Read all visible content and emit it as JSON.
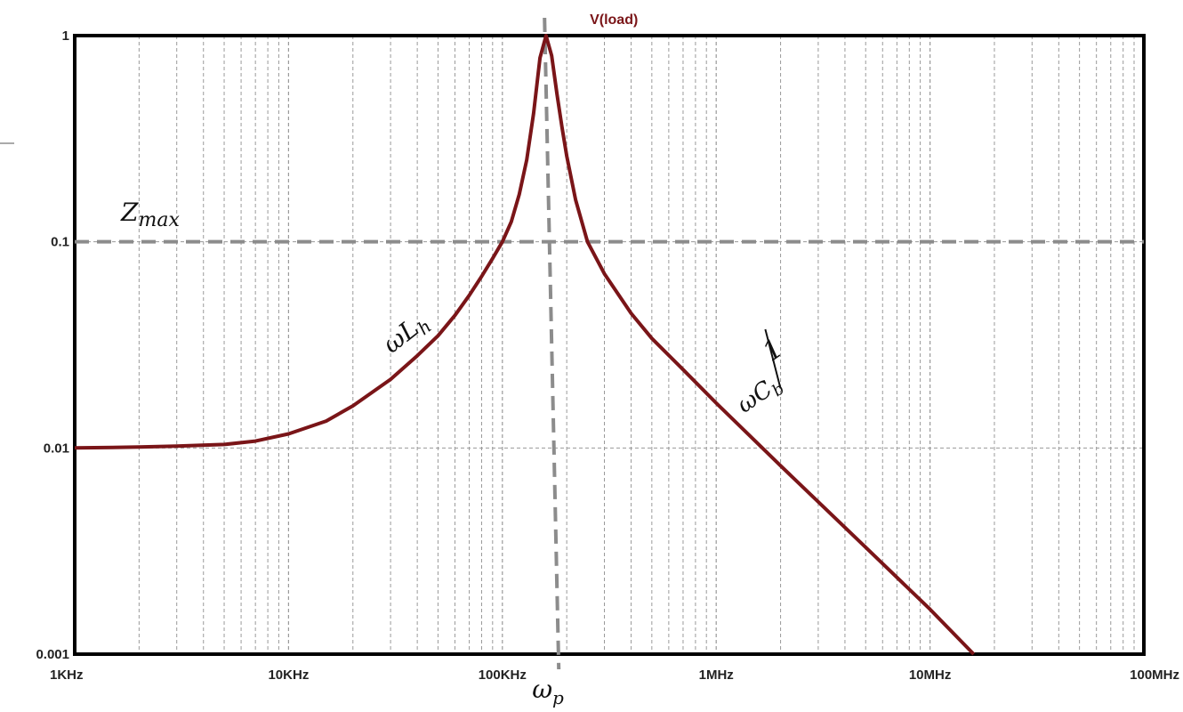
{
  "chart_data": {
    "type": "line",
    "x_scale": "log",
    "y_scale": "log",
    "xlim": [
      1000,
      100000000
    ],
    "ylim": [
      0.001,
      1
    ],
    "grid": true,
    "x_ticks": [
      {
        "value": 1000,
        "label": "1KHz"
      },
      {
        "value": 10000,
        "label": "10KHz"
      },
      {
        "value": 100000,
        "label": "100KHz"
      },
      {
        "value": 1000000,
        "label": "1MHz"
      },
      {
        "value": 10000000,
        "label": "10MHz"
      },
      {
        "value": 100000000,
        "label": "100MHz"
      }
    ],
    "y_ticks": [
      {
        "value": 1,
        "label": "1"
      },
      {
        "value": 0.1,
        "label": "0.1"
      },
      {
        "value": 0.01,
        "label": "0.01"
      },
      {
        "value": 0.001,
        "label": "0.001"
      }
    ],
    "series": [
      {
        "name": "V(load)",
        "color": "#7a1518",
        "x": [
          1000,
          2000,
          3000,
          5000,
          7000,
          10000,
          15000,
          20000,
          30000,
          40000,
          50000,
          60000,
          70000,
          80000,
          90000,
          100000,
          110000,
          120000,
          130000,
          140000,
          150000,
          160000,
          170000,
          180000,
          190000,
          200000,
          220000,
          250000,
          300000,
          400000,
          500000,
          700000,
          1000000,
          2000000,
          5000000,
          10000000,
          16000000
        ],
        "y": [
          0.01,
          0.0101,
          0.0102,
          0.0104,
          0.0108,
          0.0117,
          0.0135,
          0.016,
          0.0215,
          0.028,
          0.035,
          0.044,
          0.055,
          0.068,
          0.083,
          0.1,
          0.125,
          0.17,
          0.25,
          0.42,
          0.78,
          1.0,
          0.8,
          0.52,
          0.36,
          0.26,
          0.16,
          0.1,
          0.07,
          0.045,
          0.034,
          0.024,
          0.0165,
          0.0082,
          0.0033,
          0.00165,
          0.001
        ]
      }
    ],
    "annotations": {
      "z_max": {
        "label": "Z",
        "sub": "max",
        "y": 0.1
      },
      "omega_p": {
        "label": "ω",
        "sub": "p",
        "x": 170000
      },
      "omega_l": {
        "label": "ωL",
        "sub": "h"
      },
      "omega_c": {
        "numerator": "1",
        "denominator": "ωC",
        "sub": "b"
      }
    },
    "colors": {
      "reference_line": "#8c8c8c",
      "frame": "#000000",
      "grid": "#9a9a9a"
    }
  }
}
